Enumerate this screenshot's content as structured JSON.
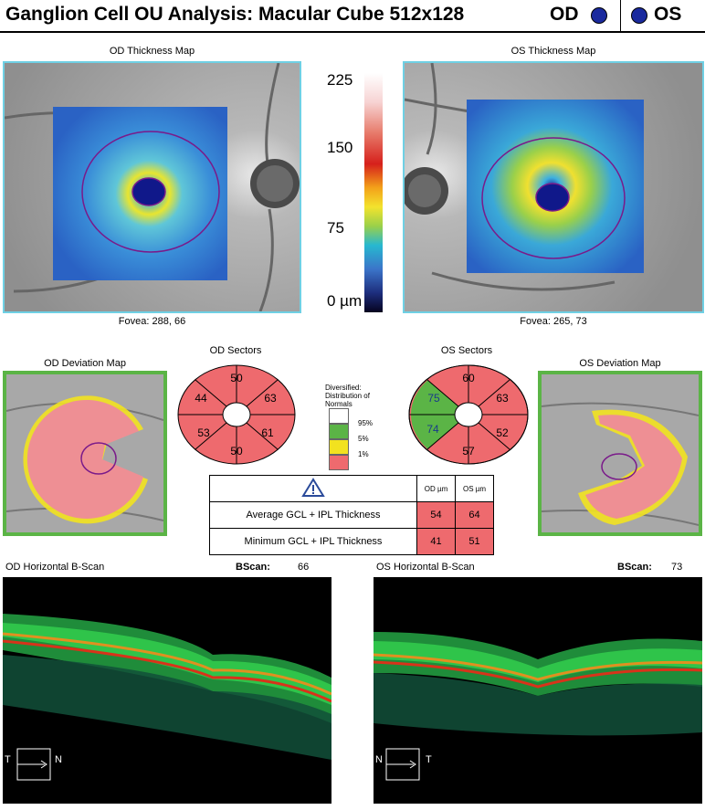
{
  "header": {
    "title": "Ganglion Cell OU Analysis: Macular Cube 512x128",
    "od_label": "OD",
    "os_label": "OS"
  },
  "thickness_maps": {
    "od_title": "OD Thickness Map",
    "os_title": "OS Thickness Map",
    "od_fovea": "Fovea: 288, 66",
    "os_fovea": "Fovea: 265, 73"
  },
  "scale": {
    "max": "225",
    "mid_high": "150",
    "mid": "75",
    "min": "0 µm"
  },
  "deviation": {
    "od_title": "OD Deviation Map",
    "os_title": "OS Deviation Map"
  },
  "sectors": {
    "od_title": "OD Sectors",
    "os_title": "OS Sectors",
    "od": {
      "top": "50",
      "upper_right": "63",
      "lower_right": "61",
      "bottom": "50",
      "lower_left": "53",
      "upper_left": "44"
    },
    "os": {
      "top": "60",
      "upper_right": "63",
      "lower_right": "52",
      "bottom": "57",
      "lower_left": "74",
      "upper_left": "75"
    }
  },
  "legend": {
    "heading": "Diversified: Distribution of Normals",
    "p95": "95%",
    "p5": "5%",
    "p1": "1%"
  },
  "gcl_table": {
    "warn_icon": "warning-triangle-icon",
    "od_header": "OD µm",
    "os_header": "OS µm",
    "rows": [
      {
        "label": "Average GCL + IPL Thickness",
        "od": "54",
        "os": "64"
      },
      {
        "label": "Minimum GCL + IPL Thickness",
        "od": "41",
        "os": "51"
      }
    ]
  },
  "bscans": {
    "od_title": "OD Horizontal B-Scan",
    "os_title": "OS Horizontal B-Scan",
    "bscan_label": "BScan:",
    "od_value": "66",
    "os_value": "73",
    "od_left": "T",
    "od_right": "N",
    "os_left": "N",
    "os_right": "T"
  },
  "colors": {
    "normal_green": "#5bb446",
    "borderline_yellow": "#f2e21f",
    "abnormal_red": "#ee6a6e",
    "map_border": "#6fd0e4"
  }
}
